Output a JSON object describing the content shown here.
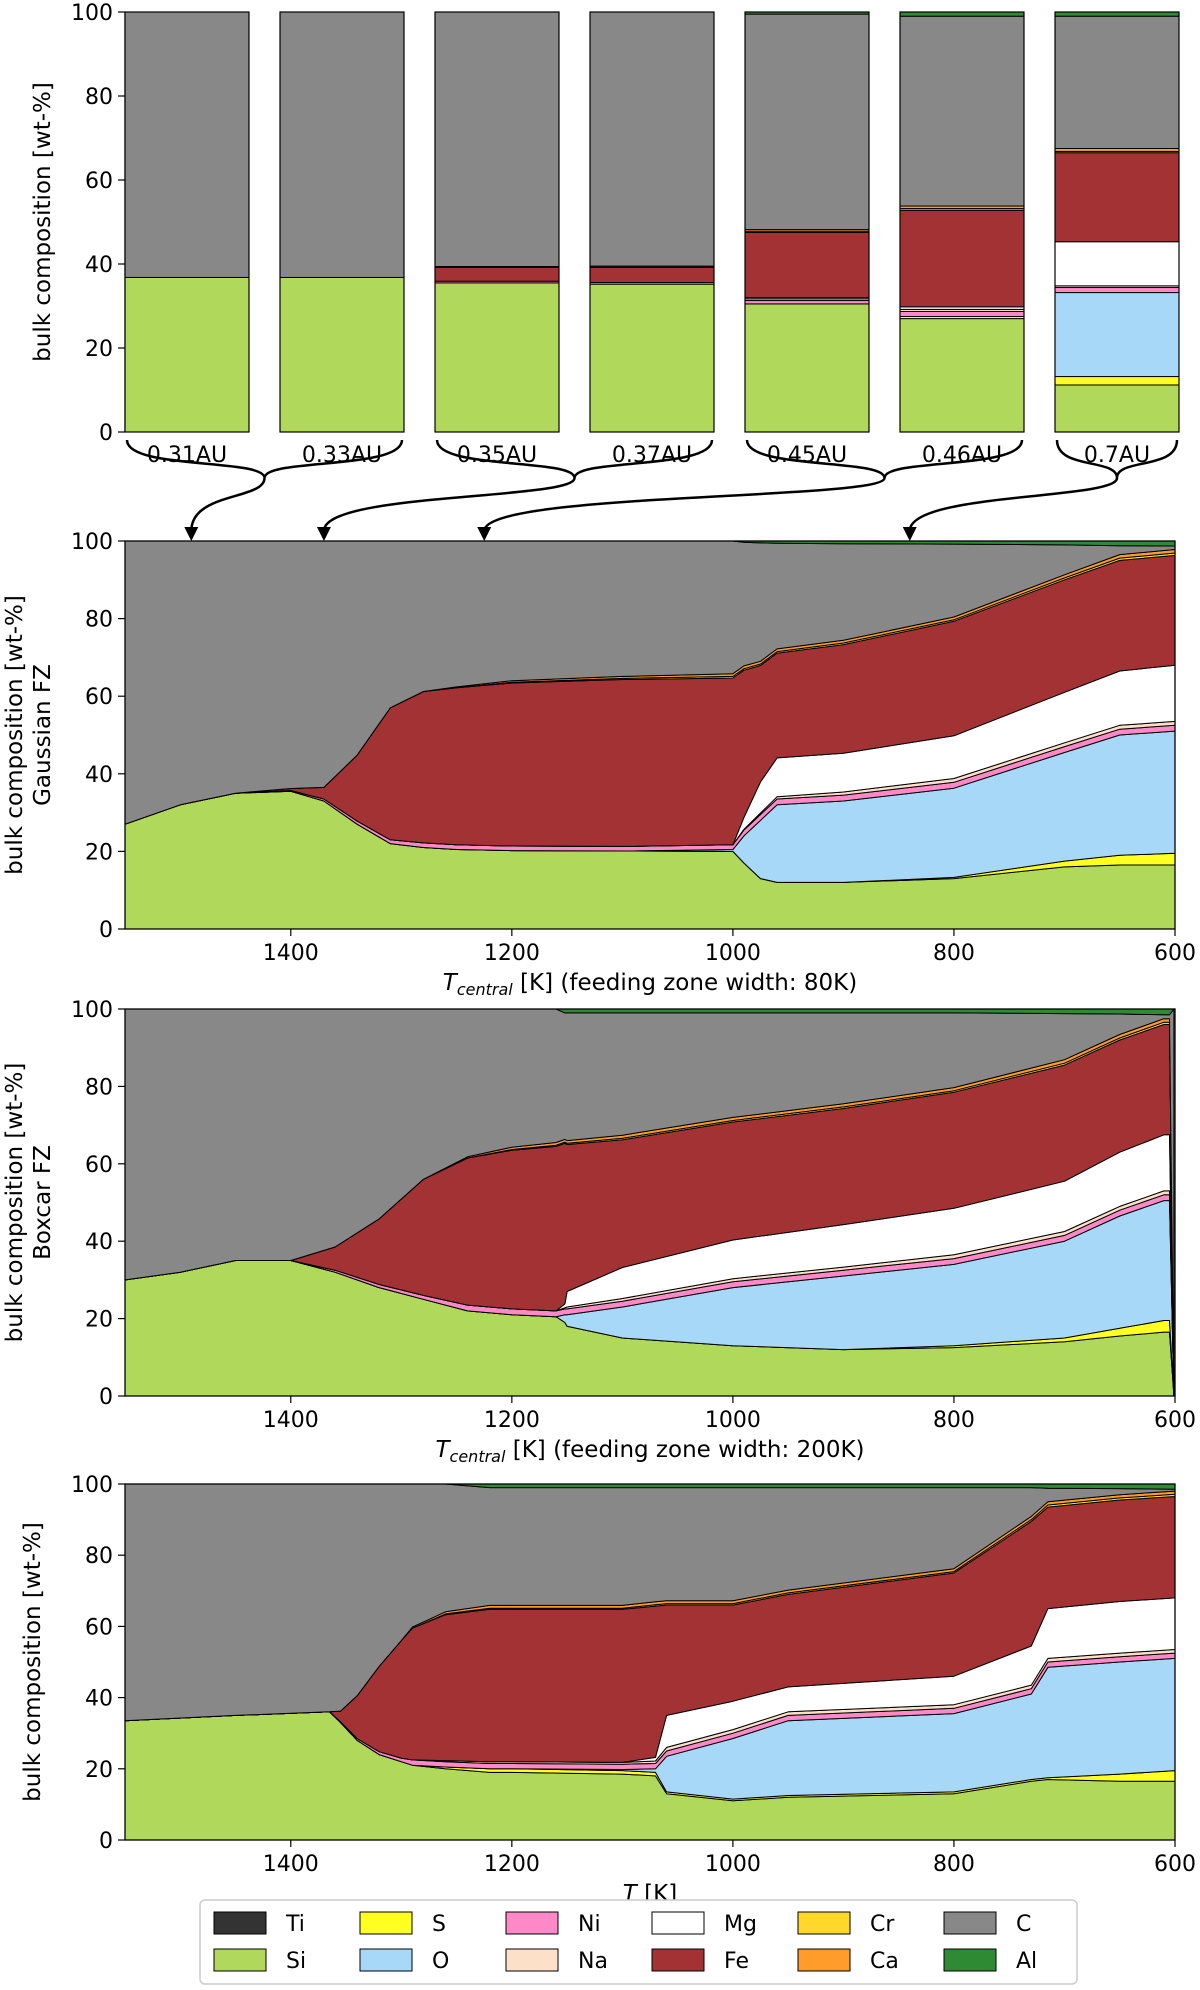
{
  "colors": {
    "Ti": "#333333",
    "Si": "#b0d95c",
    "S": "#ffff22",
    "O": "#a8d8f8",
    "Ni": "#ff88c8",
    "Na": "#fde0c8",
    "Mg": "#ffffff",
    "Fe": "#a33235",
    "Cr": "#ffd82a",
    "Ca": "#ff9c2a",
    "C": "#888888",
    "Al": "#2e8b34"
  },
  "stack_order": [
    "Si",
    "S",
    "O",
    "Ni",
    "Na",
    "Mg",
    "Fe",
    "Cr",
    "Ca",
    "C",
    "Al"
  ],
  "legend": {
    "columns": [
      [
        "Ti",
        "Si"
      ],
      [
        "S",
        "O"
      ],
      [
        "Ni",
        "Na"
      ],
      [
        "Mg",
        "Fe"
      ],
      [
        "Cr",
        "Ca"
      ],
      [
        "C",
        "Al"
      ]
    ]
  },
  "chart_data": [
    {
      "type": "bar",
      "stacked": true,
      "ylabel": "bulk composition [wt-%]",
      "ylim": [
        0,
        100
      ],
      "yticks": [
        0,
        20,
        40,
        60,
        80,
        100
      ],
      "categories": [
        "0.31AU",
        "0.33AU",
        "0.35AU",
        "0.37AU",
        "0.45AU",
        "0.46AU",
        "0.7AU"
      ],
      "stacks": [
        {
          "Si": 36.8,
          "C": 63.2
        },
        {
          "Si": 36.8,
          "C": 63.2
        },
        {
          "Si": 35.5,
          "Ni": 0.4,
          "Fe": 3.3,
          "Ti": 0.2,
          "C": 60.6
        },
        {
          "Si": 35.2,
          "Ni": 0.4,
          "Fe": 3.6,
          "Ti": 0.3,
          "C": 60.5
        },
        {
          "Si": 30.5,
          "Na": 0.4,
          "Ni": 0.8,
          "Mg": 0.3,
          "Fe": 15.5,
          "Ca": 0.4,
          "Cr": 0.3,
          "C": 51.3,
          "Al": 0.5
        },
        {
          "Si": 27.0,
          "S": 0.5,
          "Na": 0.5,
          "Ni": 1.2,
          "Mg": 0.6,
          "Fe": 23.0,
          "Ca": 0.6,
          "Cr": 0.4,
          "C": 45.2,
          "Al": 1.0
        },
        {
          "Si": 11.2,
          "S": 2.0,
          "O": 20.0,
          "Ni": 1.2,
          "Na": 0.4,
          "Mg": 10.5,
          "Fe": 21.2,
          "Ca": 0.7,
          "Cr": 0.3,
          "C": 31.5,
          "Al": 1.0
        }
      ],
      "brace_targets_K": [
        1490,
        1370,
        1225,
        840
      ]
    },
    {
      "type": "area",
      "stacked": true,
      "ylabel": "bulk composition [wt-%]",
      "ylabel2": "Gaussian FZ",
      "xlabel": "(feeding zone width: 80K)",
      "xlabel_symbol": "T",
      "xlabel_sub": "central",
      "xlabel_unit": "[K]",
      "xlim": [
        1550,
        600
      ],
      "xticks": [
        1400,
        1200,
        1000,
        800,
        600
      ],
      "ylim": [
        0,
        100
      ],
      "yticks": [
        0,
        20,
        40,
        60,
        80,
        100
      ],
      "x": [
        1550,
        1500,
        1450,
        1400,
        1370,
        1340,
        1310,
        1280,
        1250,
        1200,
        1100,
        1000,
        990,
        975,
        960,
        900,
        800,
        700,
        650,
        600
      ],
      "series": {
        "Si": [
          27,
          32,
          35,
          35.5,
          33,
          27,
          22,
          21,
          20.5,
          20.2,
          20.1,
          20,
          17,
          13,
          12,
          12,
          13,
          16,
          16.5,
          16.5
        ],
        "S": [
          0,
          0,
          0,
          0,
          0,
          0,
          0,
          0,
          0,
          0,
          0,
          0,
          0,
          0,
          0,
          0,
          0.3,
          1.5,
          2.5,
          3
        ],
        "O": [
          0,
          0,
          0,
          0,
          0,
          0,
          0,
          0,
          0,
          0,
          0,
          0.5,
          7,
          15,
          20,
          21,
          23,
          28,
          31,
          31.5
        ],
        "Ni": [
          0,
          0,
          0,
          0.2,
          0.5,
          0.8,
          1,
          1.2,
          1.2,
          1.2,
          1.2,
          1.2,
          1.5,
          1.5,
          1.5,
          1.5,
          1.5,
          1.5,
          1.5,
          1.5
        ],
        "Na": [
          0,
          0,
          0,
          0,
          0,
          0,
          0,
          0,
          0,
          0,
          0,
          0,
          0.2,
          0.4,
          0.6,
          0.8,
          1,
          1,
          1,
          1
        ],
        "Mg": [
          0,
          0,
          0,
          0,
          0,
          0,
          0,
          0,
          0,
          0,
          0,
          0,
          3,
          8,
          10,
          10,
          11,
          13,
          14,
          14.5
        ],
        "Fe": [
          0,
          0,
          0,
          0.5,
          3,
          17,
          34,
          39,
          40.5,
          42,
          43,
          43,
          38,
          30,
          27,
          28,
          29.5,
          29,
          28.5,
          28.3
        ],
        "Cr": [
          0,
          0,
          0,
          0,
          0,
          0,
          0,
          0,
          0,
          0.2,
          0.3,
          0.4,
          0.4,
          0.4,
          0.4,
          0.4,
          0.4,
          0.5,
          0.6,
          0.6
        ],
        "Ca": [
          0,
          0,
          0,
          0,
          0,
          0,
          0,
          0,
          0.2,
          0.4,
          0.5,
          0.7,
          0.7,
          0.7,
          0.7,
          0.7,
          0.7,
          0.8,
          0.9,
          0.9
        ],
        "Al": [
          0,
          0,
          0,
          0,
          0,
          0,
          0,
          0,
          0,
          0,
          0,
          0,
          0.3,
          0.5,
          0.6,
          0.7,
          0.8,
          1,
          1.2,
          1.3
        ]
      }
    },
    {
      "type": "area",
      "stacked": true,
      "ylabel": "bulk composition [wt-%]",
      "ylabel2": "Boxcar FZ",
      "xlabel": "(feeding zone width: 200K)",
      "xlabel_symbol": "T",
      "xlabel_sub": "central",
      "xlabel_unit": "[K]",
      "xlim": [
        1550,
        600
      ],
      "xticks": [
        1400,
        1200,
        1000,
        800,
        600
      ],
      "ylim": [
        0,
        100
      ],
      "yticks": [
        0,
        20,
        40,
        60,
        80,
        100
      ],
      "x": [
        1550,
        1500,
        1450,
        1400,
        1360,
        1320,
        1280,
        1240,
        1200,
        1160,
        1152,
        1150,
        1100,
        1000,
        900,
        800,
        700,
        650,
        610,
        605,
        601
      ],
      "series": {
        "Si": [
          30,
          32,
          35,
          35,
          32,
          28,
          25,
          22,
          21,
          20.5,
          19,
          18,
          15,
          13,
          12,
          12.5,
          14,
          15.5,
          16.5,
          16.5,
          0
        ],
        "S": [
          0,
          0,
          0,
          0,
          0,
          0,
          0,
          0,
          0,
          0,
          0,
          0,
          0,
          0,
          0,
          0.5,
          1,
          2,
          3,
          3,
          0
        ],
        "O": [
          0,
          0,
          0,
          0,
          0,
          0,
          0,
          0,
          0,
          0,
          2,
          3,
          8,
          15,
          19,
          21,
          25,
          29,
          31,
          31,
          0
        ],
        "Ni": [
          0,
          0,
          0,
          0,
          0.5,
          0.8,
          1,
          1.5,
          1.5,
          1.5,
          1.5,
          1.5,
          1.5,
          1.5,
          1.5,
          1.5,
          1.5,
          1.5,
          1.5,
          1.5,
          0
        ],
        "Na": [
          0,
          0,
          0,
          0,
          0,
          0,
          0,
          0,
          0,
          0,
          0.3,
          0.5,
          0.7,
          0.8,
          0.8,
          1,
          1,
          1,
          1,
          1,
          0
        ],
        "Mg": [
          0,
          0,
          0,
          0,
          0,
          0,
          0,
          0,
          0,
          0,
          1,
          4,
          8,
          10,
          11,
          12,
          13,
          14,
          14.5,
          14.5,
          0
        ],
        "Fe": [
          0,
          0,
          0,
          0,
          6,
          17,
          30,
          38,
          41,
          42.5,
          41.5,
          38,
          33,
          30.5,
          30,
          30,
          30,
          29,
          28.5,
          28.5,
          0
        ],
        "Cr": [
          0,
          0,
          0,
          0,
          0,
          0,
          0,
          0,
          0.2,
          0.3,
          0.3,
          0.3,
          0.4,
          0.4,
          0.4,
          0.4,
          0.5,
          0.5,
          0.6,
          0.6,
          0
        ],
        "Ca": [
          0,
          0,
          0,
          0,
          0,
          0,
          0,
          0.3,
          0.6,
          0.7,
          0.7,
          0.7,
          0.8,
          0.8,
          0.8,
          0.8,
          0.9,
          0.9,
          0.9,
          0.9,
          0
        ],
        "Al": [
          0,
          0,
          0,
          0,
          0,
          0,
          0,
          0,
          0,
          0,
          1,
          1,
          1,
          1,
          1,
          1,
          1.2,
          1.3,
          1.5,
          1.5,
          0
        ]
      }
    },
    {
      "type": "area",
      "stacked": true,
      "ylabel": "bulk composition [wt-%]",
      "xlabel": "",
      "xlabel_symbol": "T",
      "xlabel_sub": "",
      "xlabel_unit": "[K]",
      "xlim": [
        1550,
        600
      ],
      "xticks": [
        1400,
        1200,
        1000,
        800,
        600
      ],
      "ylim": [
        0,
        100
      ],
      "yticks": [
        0,
        20,
        40,
        60,
        80,
        100
      ],
      "x": [
        1550,
        1450,
        1365,
        1355,
        1340,
        1320,
        1300,
        1290,
        1260,
        1220,
        1200,
        1100,
        1070,
        1060,
        1000,
        950,
        800,
        730,
        715,
        650,
        600
      ],
      "series": {
        "Si": [
          33.5,
          35,
          36,
          33,
          28,
          24,
          22,
          21,
          20,
          19,
          19,
          18.5,
          18,
          13,
          11,
          12,
          13,
          16.5,
          17,
          16.5,
          16.5
        ],
        "S": [
          0,
          0,
          0,
          0,
          0,
          0,
          0,
          0,
          0.5,
          1,
          1,
          1,
          1,
          0.5,
          0.5,
          0.5,
          0.5,
          0.5,
          0.5,
          2,
          3
        ],
        "O": [
          0,
          0,
          0,
          0,
          0,
          0,
          0,
          0,
          0,
          0,
          0,
          0.3,
          1,
          10,
          17,
          21,
          22,
          24,
          31,
          31.5,
          31.5
        ],
        "Ni": [
          0,
          0,
          0,
          0.2,
          0.5,
          0.8,
          1,
          1.5,
          1.5,
          1.5,
          1.5,
          1.5,
          1.5,
          1.5,
          1.5,
          1.5,
          1.5,
          1.5,
          1.5,
          1.5,
          1.5
        ],
        "Na": [
          0,
          0,
          0,
          0,
          0,
          0,
          0,
          0,
          0.3,
          0.5,
          0.5,
          0.5,
          0.7,
          1,
          1,
          1,
          1,
          1,
          1,
          1,
          1
        ],
        "Mg": [
          0,
          0,
          0,
          0,
          0,
          0,
          0,
          0,
          0,
          0,
          0,
          0,
          1,
          9,
          8,
          7,
          8,
          11,
          14,
          14.5,
          14.5
        ],
        "Fe": [
          0,
          0,
          0,
          3,
          12,
          24,
          33,
          37,
          41,
          42.8,
          42.8,
          43,
          42.5,
          31,
          27,
          26,
          29,
          35,
          28.5,
          28.5,
          28.5
        ],
        "Cr": [
          0,
          0,
          0,
          0,
          0,
          0,
          0,
          0,
          0.2,
          0.3,
          0.3,
          0.3,
          0.4,
          0.4,
          0.4,
          0.4,
          0.4,
          0.5,
          0.6,
          0.6,
          0.6
        ],
        "Ca": [
          0,
          0,
          0,
          0,
          0,
          0,
          0,
          0.3,
          0.6,
          0.8,
          0.8,
          0.8,
          0.8,
          0.8,
          0.8,
          0.8,
          0.8,
          0.9,
          0.9,
          0.9,
          0.9
        ],
        "Al": [
          0,
          0,
          0,
          0,
          0,
          0,
          0,
          0,
          0,
          1,
          1,
          1,
          1,
          1,
          1,
          1,
          1,
          1,
          1.2,
          1.3,
          1.5
        ]
      }
    }
  ]
}
